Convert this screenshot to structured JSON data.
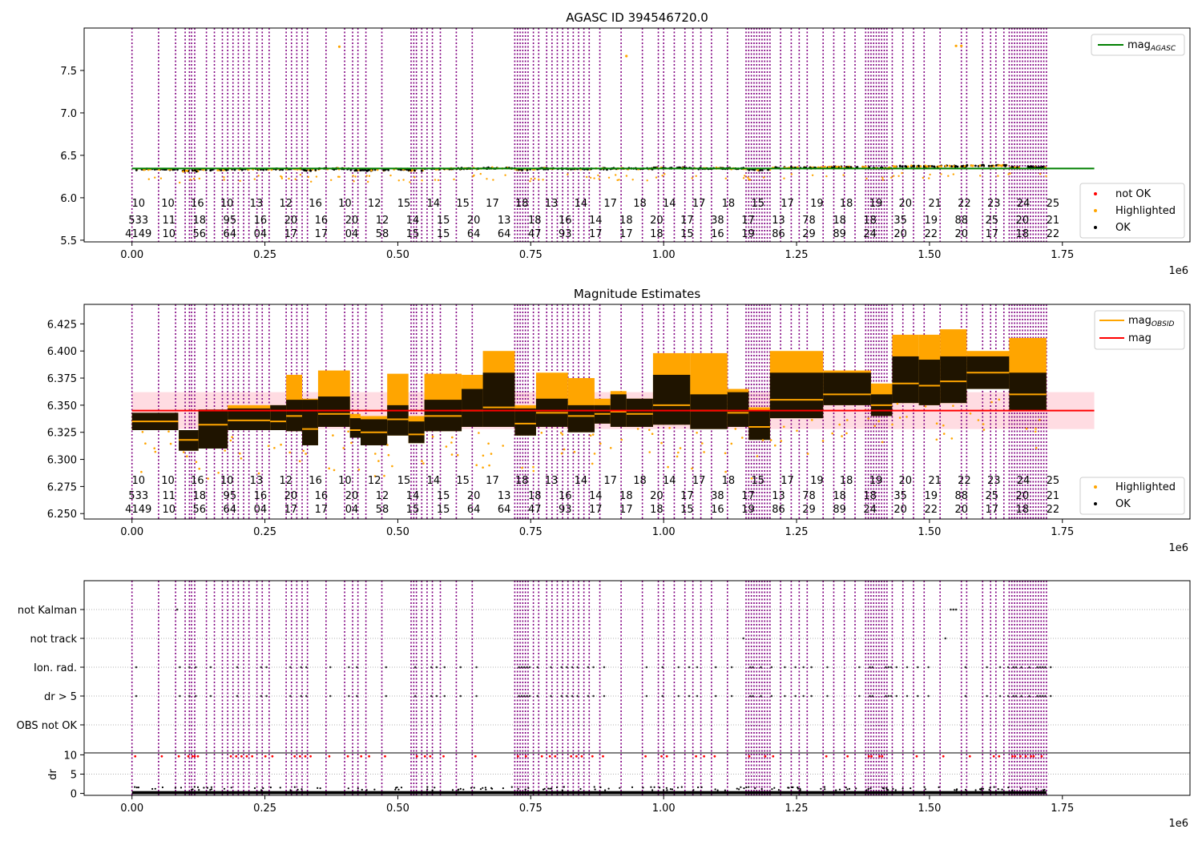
{
  "chart_data": [
    {
      "type": "scatter",
      "title": "AGASC ID 394546720.0",
      "x_offset_label": "1e6",
      "xlim": [
        -0.09,
        1.99
      ],
      "ylim": [
        5.48,
        8.0
      ],
      "x_ticks": [
        0.0,
        0.25,
        0.5,
        0.75,
        1.0,
        1.25,
        1.5,
        1.75
      ],
      "x_tick_labels": [
        "0.00",
        "0.25",
        "0.50",
        "0.75",
        "1.00",
        "1.25",
        "1.50",
        "1.75"
      ],
      "y_ticks": [
        5.5,
        6.0,
        6.5,
        7.0,
        7.5
      ],
      "y_tick_labels": [
        "5.5",
        "6.0",
        "6.5",
        "7.0",
        "7.5"
      ],
      "reference_line": {
        "name_prefix": "mag",
        "name_sub": "AGASC",
        "value": 6.345,
        "color": "#008000"
      },
      "legend_upper": "top-right",
      "legend_lower": "bottom-right",
      "legend": [
        {
          "label": "not OK",
          "color": "#ff0000"
        },
        {
          "label": "Highlighted",
          "color": "#ffa500"
        },
        {
          "label": "OK",
          "color": "#000000"
        }
      ],
      "outliers": [
        [
          0.39,
          7.78
        ],
        [
          0.93,
          7.67
        ],
        [
          1.55,
          7.79
        ],
        [
          1.56,
          7.79
        ]
      ],
      "obsid_labels": {
        "row1": [
          "10",
          "10",
          "16",
          "10",
          "13",
          "12",
          "16",
          "10",
          "12",
          "15",
          "14",
          "15",
          "17",
          "18",
          "13",
          "14",
          "17",
          "18",
          "14",
          "17",
          "18",
          "15",
          "17",
          "19",
          "18",
          "19",
          "20",
          "21",
          "22",
          "23",
          "24",
          "25"
        ],
        "row2": [
          "533",
          "11",
          "18",
          "95",
          "16",
          "20",
          "16",
          "20",
          "12",
          "14",
          "15",
          "20",
          "13",
          "18",
          "16",
          "14",
          "18",
          "20",
          "17",
          "38",
          "17",
          "13",
          "78",
          "18",
          "18",
          "35",
          "19",
          "88",
          "25",
          "20",
          "21"
        ],
        "row3": [
          "4149",
          "10",
          "56",
          "64",
          "04",
          "17",
          "17",
          "04",
          "58",
          "15",
          "15",
          "64",
          "64",
          "47",
          "93",
          "17",
          "17",
          "18",
          "15",
          "16",
          "19",
          "86",
          "29",
          "89",
          "24",
          "20",
          "22",
          "20",
          "17",
          "18",
          "22"
        ]
      }
    },
    {
      "type": "scatter",
      "title": "Magnitude Estimates",
      "x_offset_label": "1e6",
      "xlim": [
        -0.09,
        1.99
      ],
      "ylim": [
        6.245,
        6.443
      ],
      "x_ticks": [
        0.0,
        0.25,
        0.5,
        0.75,
        1.0,
        1.25,
        1.5,
        1.75
      ],
      "x_tick_labels": [
        "0.00",
        "0.25",
        "0.50",
        "0.75",
        "1.00",
        "1.25",
        "1.50",
        "1.75"
      ],
      "y_ticks": [
        6.25,
        6.275,
        6.3,
        6.325,
        6.35,
        6.375,
        6.4,
        6.425
      ],
      "y_tick_labels": [
        "6.250",
        "6.275",
        "6.300",
        "6.325",
        "6.350",
        "6.375",
        "6.400",
        "6.425"
      ],
      "mag_line": {
        "name": "mag",
        "value": 6.345,
        "band": [
          6.328,
          6.362
        ],
        "color": "#ff0000"
      },
      "legend_upper": "top-right",
      "legend_lower": "bottom-right",
      "legend_lines": [
        {
          "name_prefix": "mag",
          "name_sub": "OBSID",
          "color": "#ffa500"
        },
        {
          "name_prefix": "mag",
          "name_sub": "",
          "color": "#ff0000"
        }
      ],
      "legend_points": [
        {
          "label": "Highlighted",
          "color": "#ffa500"
        },
        {
          "label": "OK",
          "color": "#000000"
        }
      ],
      "segments": [
        {
          "x": [
            0.0,
            0.087
          ],
          "y": 6.335,
          "lo": 6.327,
          "hi": 6.343,
          "top": 6.343
        },
        {
          "x": [
            0.088,
            0.125
          ],
          "y": 6.318,
          "lo": 6.308,
          "hi": 6.327,
          "top": 6.327
        },
        {
          "x": [
            0.125,
            0.18
          ],
          "y": 6.332,
          "lo": 6.31,
          "hi": 6.346,
          "top": 6.346
        },
        {
          "x": [
            0.18,
            0.26
          ],
          "y": 6.336,
          "lo": 6.327,
          "hi": 6.347,
          "top": 6.35
        },
        {
          "x": [
            0.26,
            0.29
          ],
          "y": 6.335,
          "lo": 6.327,
          "hi": 6.35,
          "top": 6.35
        },
        {
          "x": [
            0.29,
            0.32
          ],
          "y": 6.34,
          "lo": 6.326,
          "hi": 6.355,
          "top": 6.378
        },
        {
          "x": [
            0.32,
            0.35
          ],
          "y": 6.328,
          "lo": 6.313,
          "hi": 6.355,
          "top": 6.356
        },
        {
          "x": [
            0.35,
            0.41
          ],
          "y": 6.342,
          "lo": 6.33,
          "hi": 6.358,
          "top": 6.382
        },
        {
          "x": [
            0.41,
            0.43
          ],
          "y": 6.327,
          "lo": 6.32,
          "hi": 6.338,
          "top": 6.342
        },
        {
          "x": [
            0.43,
            0.48
          ],
          "y": 6.325,
          "lo": 6.313,
          "hi": 6.337,
          "top": 6.34
        },
        {
          "x": [
            0.48,
            0.52
          ],
          "y": 6.337,
          "lo": 6.322,
          "hi": 6.35,
          "top": 6.379
        },
        {
          "x": [
            0.52,
            0.55
          ],
          "y": 6.323,
          "lo": 6.315,
          "hi": 6.335,
          "top": 6.34
        },
        {
          "x": [
            0.55,
            0.62
          ],
          "y": 6.34,
          "lo": 6.326,
          "hi": 6.355,
          "top": 6.379
        },
        {
          "x": [
            0.62,
            0.66
          ],
          "y": 6.345,
          "lo": 6.33,
          "hi": 6.365,
          "top": 6.378
        },
        {
          "x": [
            0.66,
            0.72
          ],
          "y": 6.348,
          "lo": 6.33,
          "hi": 6.38,
          "top": 6.4
        },
        {
          "x": [
            0.72,
            0.76
          ],
          "y": 6.333,
          "lo": 6.322,
          "hi": 6.347,
          "top": 6.35
        },
        {
          "x": [
            0.76,
            0.82
          ],
          "y": 6.343,
          "lo": 6.33,
          "hi": 6.356,
          "top": 6.38
        },
        {
          "x": [
            0.82,
            0.87
          ],
          "y": 6.34,
          "lo": 6.325,
          "hi": 6.35,
          "top": 6.375
        },
        {
          "x": [
            0.87,
            0.9
          ],
          "y": 6.342,
          "lo": 6.333,
          "hi": 6.35,
          "top": 6.356
        },
        {
          "x": [
            0.9,
            0.93
          ],
          "y": 6.344,
          "lo": 6.33,
          "hi": 6.36,
          "top": 6.363
        },
        {
          "x": [
            0.93,
            0.98
          ],
          "y": 6.342,
          "lo": 6.33,
          "hi": 6.356,
          "top": 6.356
        },
        {
          "x": [
            0.98,
            1.05
          ],
          "y": 6.35,
          "lo": 6.332,
          "hi": 6.378,
          "top": 6.398
        },
        {
          "x": [
            1.05,
            1.12
          ],
          "y": 6.345,
          "lo": 6.328,
          "hi": 6.36,
          "top": 6.398
        },
        {
          "x": [
            1.12,
            1.16
          ],
          "y": 6.343,
          "lo": 6.33,
          "hi": 6.362,
          "top": 6.365
        },
        {
          "x": [
            1.16,
            1.2
          ],
          "y": 6.33,
          "lo": 6.318,
          "hi": 6.345,
          "top": 6.348
        },
        {
          "x": [
            1.2,
            1.3
          ],
          "y": 6.355,
          "lo": 6.338,
          "hi": 6.38,
          "top": 6.4
        },
        {
          "x": [
            1.3,
            1.39
          ],
          "y": 6.36,
          "lo": 6.35,
          "hi": 6.38,
          "top": 6.382
        },
        {
          "x": [
            1.39,
            1.43
          ],
          "y": 6.35,
          "lo": 6.34,
          "hi": 6.36,
          "top": 6.37
        },
        {
          "x": [
            1.43,
            1.48
          ],
          "y": 6.37,
          "lo": 6.352,
          "hi": 6.395,
          "top": 6.415
        },
        {
          "x": [
            1.48,
            1.52
          ],
          "y": 6.368,
          "lo": 6.35,
          "hi": 6.392,
          "top": 6.415
        },
        {
          "x": [
            1.52,
            1.57
          ],
          "y": 6.372,
          "lo": 6.352,
          "hi": 6.395,
          "top": 6.42
        },
        {
          "x": [
            1.57,
            1.65
          ],
          "y": 6.38,
          "lo": 6.365,
          "hi": 6.395,
          "top": 6.4
        },
        {
          "x": [
            1.65,
            1.72
          ],
          "y": 6.36,
          "lo": 6.345,
          "hi": 6.38,
          "top": 6.412
        }
      ],
      "obsid_labels": {
        "row1": [
          "10",
          "10",
          "16",
          "10",
          "13",
          "12",
          "16",
          "10",
          "12",
          "15",
          "14",
          "15",
          "17",
          "18",
          "13",
          "14",
          "17",
          "18",
          "14",
          "17",
          "18",
          "15",
          "17",
          "19",
          "18",
          "19",
          "20",
          "21",
          "22",
          "23",
          "24",
          "25"
        ],
        "row2": [
          "533",
          "11",
          "18",
          "95",
          "16",
          "20",
          "16",
          "20",
          "12",
          "14",
          "15",
          "20",
          "13",
          "18",
          "16",
          "14",
          "18",
          "20",
          "17",
          "38",
          "17",
          "13",
          "78",
          "18",
          "18",
          "35",
          "19",
          "88",
          "25",
          "20",
          "21"
        ],
        "row3": [
          "4149",
          "10",
          "56",
          "64",
          "04",
          "17",
          "17",
          "04",
          "58",
          "15",
          "15",
          "64",
          "64",
          "47",
          "93",
          "17",
          "17",
          "18",
          "15",
          "16",
          "19",
          "86",
          "29",
          "89",
          "24",
          "20",
          "22",
          "20",
          "17",
          "18",
          "22"
        ]
      }
    },
    {
      "type": "scatter",
      "title": "",
      "x_offset_label": "1e6",
      "xlim": [
        -0.09,
        1.99
      ],
      "x_ticks": [
        0.0,
        0.25,
        0.5,
        0.75,
        1.0,
        1.25,
        1.5,
        1.75
      ],
      "x_tick_labels": [
        "0.00",
        "0.25",
        "0.50",
        "0.75",
        "1.00",
        "1.25",
        "1.50",
        "1.75"
      ],
      "flag_rows": [
        "not Kalman",
        "not track",
        "Ion. rad.",
        "dr > 5",
        "OBS not OK"
      ],
      "dr_axis": {
        "ylabel": "dr",
        "ylim": [
          -0.5,
          10.5
        ],
        "y_ticks": [
          0,
          5,
          10
        ],
        "y_tick_labels": [
          "0",
          "5",
          "10"
        ]
      }
    }
  ],
  "observation_boundaries": [
    0.0,
    0.05,
    0.082,
    0.1,
    0.108,
    0.112,
    0.118,
    0.14,
    0.155,
    0.17,
    0.18,
    0.19,
    0.2,
    0.21,
    0.22,
    0.235,
    0.245,
    0.258,
    0.29,
    0.3,
    0.31,
    0.32,
    0.33,
    0.365,
    0.4,
    0.415,
    0.425,
    0.44,
    0.47,
    0.525,
    0.53,
    0.535,
    0.545,
    0.555,
    0.565,
    0.58,
    0.61,
    0.64,
    0.72,
    0.725,
    0.73,
    0.735,
    0.74,
    0.745,
    0.755,
    0.765,
    0.78,
    0.79,
    0.8,
    0.81,
    0.82,
    0.83,
    0.84,
    0.85,
    0.86,
    0.88,
    0.92,
    0.96,
    0.99,
    1.0,
    1.02,
    1.04,
    1.055,
    1.07,
    1.09,
    1.12,
    1.155,
    1.16,
    1.165,
    1.17,
    1.175,
    1.18,
    1.185,
    1.19,
    1.195,
    1.2,
    1.22,
    1.24,
    1.255,
    1.27,
    1.3,
    1.32,
    1.34,
    1.36,
    1.38,
    1.385,
    1.39,
    1.395,
    1.4,
    1.405,
    1.41,
    1.415,
    1.42,
    1.43,
    1.45,
    1.47,
    1.49,
    1.52,
    1.56,
    1.57,
    1.6,
    1.615,
    1.625,
    1.64,
    1.65,
    1.655,
    1.66,
    1.665,
    1.67,
    1.675,
    1.68,
    1.685,
    1.69,
    1.695,
    1.7,
    1.705,
    1.71,
    1.715,
    1.72
  ],
  "colors": {
    "boundary": "#800080",
    "ok": "#000000",
    "highlighted": "#ffa500",
    "not_ok": "#ff0000",
    "agasc_line": "#008000",
    "mag_line": "#ff0000",
    "mag_band": "#ffc0cb"
  }
}
